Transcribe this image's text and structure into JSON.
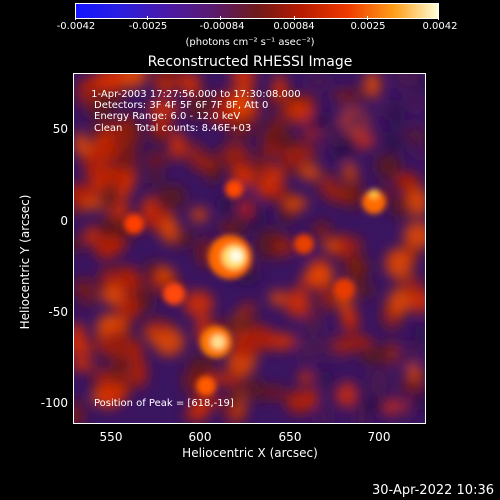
{
  "colorbar": {
    "ticks": [
      "-0.0042",
      "-0.0025",
      "-0.00084",
      "0.00084",
      "0.0025",
      "0.0042"
    ],
    "units": "(photons cm⁻² s⁻¹ asec⁻²)"
  },
  "title": "Reconstructed RHESSI Image",
  "info": {
    "time": " 1-Apr-2003 17:27:56.000 to 17:30:08.000",
    "detectors": "Detectors: 3F 4F 5F 6F 7F 8F, Att 0",
    "energy": "Energy Range: 6.0 - 12.0 keV",
    "clean": "Clean    Total counts: 8.46E+03",
    "peak": "Position of Peak = [618,-19]"
  },
  "axes": {
    "xlabel": "Heliocentric X (arcsec)",
    "ylabel": "Heliocentric Y (arcsec)",
    "xticks": [
      "550",
      "600",
      "650",
      "700"
    ],
    "yticks": [
      "50",
      "0",
      "-50",
      "-100"
    ]
  },
  "timestamp": "30-Apr-2022 10:36"
}
